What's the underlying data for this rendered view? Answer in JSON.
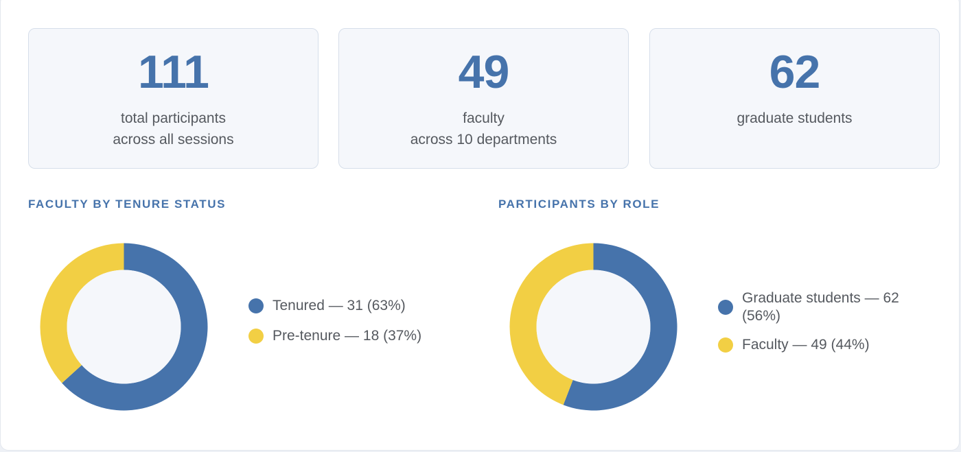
{
  "colors": {
    "primary": "#4673ab",
    "accent": "#f2cf44",
    "text": "#55595f"
  },
  "stats": [
    {
      "value": "111",
      "line1": "total participants",
      "line2": "across all sessions"
    },
    {
      "value": "49",
      "line1": "faculty",
      "line2": "across 10 departments"
    },
    {
      "value": "62",
      "line1": "graduate students",
      "line2": ""
    }
  ],
  "chart_data": [
    {
      "type": "pie",
      "title": "FACULTY BY TENURE STATUS",
      "series": [
        {
          "name": "Tenured",
          "value": 31,
          "percent": 63,
          "color": "#4673ab",
          "label": "Tenured — 31 (63%)"
        },
        {
          "name": "Pre-tenure",
          "value": 18,
          "percent": 37,
          "color": "#f2cf44",
          "label": "Pre-tenure — 18 (37%)"
        }
      ],
      "legend_position": "right"
    },
    {
      "type": "pie",
      "title": "PARTICIPANTS BY ROLE",
      "series": [
        {
          "name": "Graduate students",
          "value": 62,
          "percent": 56,
          "color": "#4673ab",
          "label": "Graduate students — 62 (56%)"
        },
        {
          "name": "Faculty",
          "value": 49,
          "percent": 44,
          "color": "#f2cf44",
          "label": "Faculty — 49 (44%)"
        }
      ],
      "legend_position": "right"
    }
  ]
}
